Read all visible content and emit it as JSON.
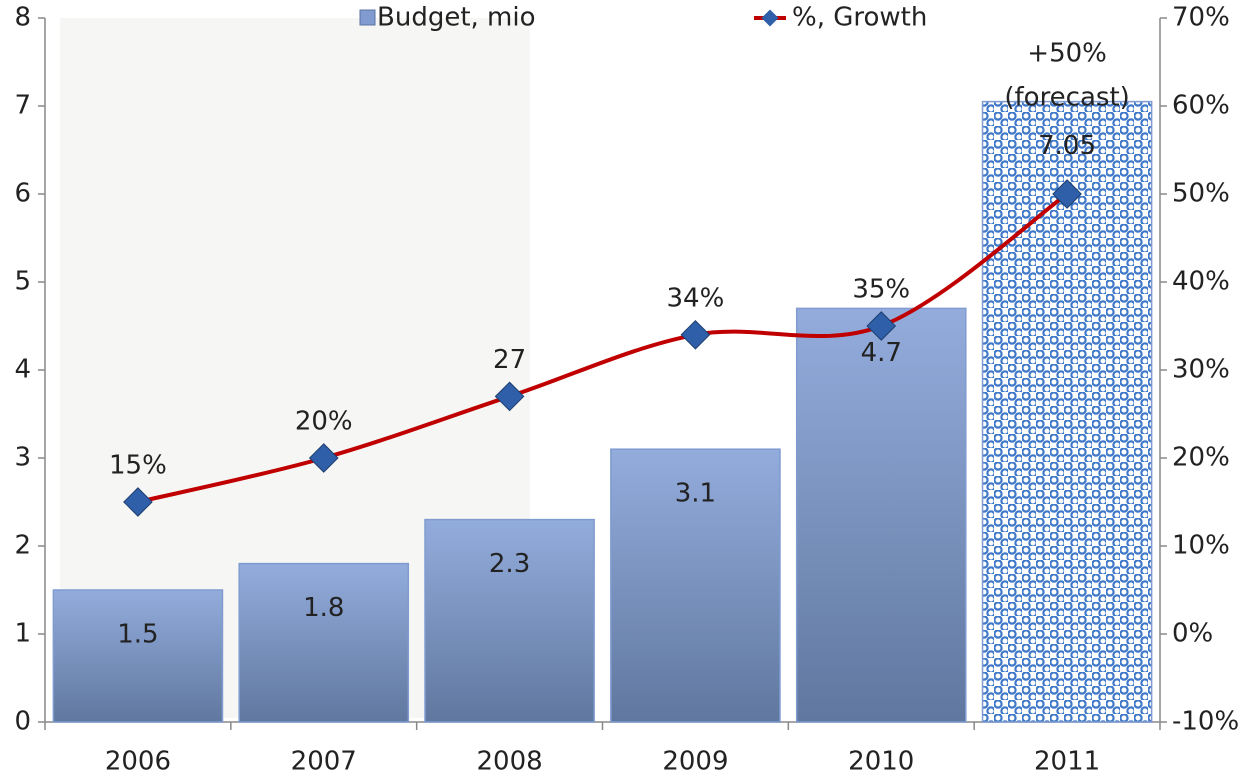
{
  "chart_data": {
    "type": "bar_line",
    "categories": [
      "2006",
      "2007",
      "2008",
      "2009",
      "2010",
      "2011"
    ],
    "series": [
      {
        "name": "Budget, mio",
        "type": "bar",
        "color": "#7f9bd0",
        "values": [
          1.5,
          1.8,
          2.3,
          3.1,
          4.7,
          7.05
        ],
        "pattern_fill": [
          false,
          false,
          false,
          false,
          false,
          true
        ]
      },
      {
        "name": "%, Growth",
        "type": "line",
        "axis": "y2",
        "color": "#c00000",
        "marker_color": "#2f5fa8",
        "values": [
          15,
          20,
          27,
          34,
          35,
          50
        ],
        "value_labels": [
          "15%",
          "20%",
          "27",
          "34%",
          "35%",
          "+50%"
        ]
      }
    ],
    "annotation": "(forecast)",
    "ylim": [
      0,
      8
    ],
    "yticks": [
      0,
      1,
      2,
      3,
      4,
      5,
      6,
      7,
      8
    ],
    "y2lim": [
      -10,
      70
    ],
    "y2ticks": [
      {
        "value": -10,
        "label": "-10%"
      },
      {
        "value": 0,
        "label": "0%"
      },
      {
        "value": 10,
        "label": "10%"
      },
      {
        "value": 20,
        "label": "20%"
      },
      {
        "value": 30,
        "label": "30%"
      },
      {
        "value": 40,
        "label": "40%"
      },
      {
        "value": 50,
        "label": "50%"
      },
      {
        "value": 60,
        "label": "60%"
      },
      {
        "value": 70,
        "label": "70%"
      }
    ],
    "legend": "top"
  }
}
